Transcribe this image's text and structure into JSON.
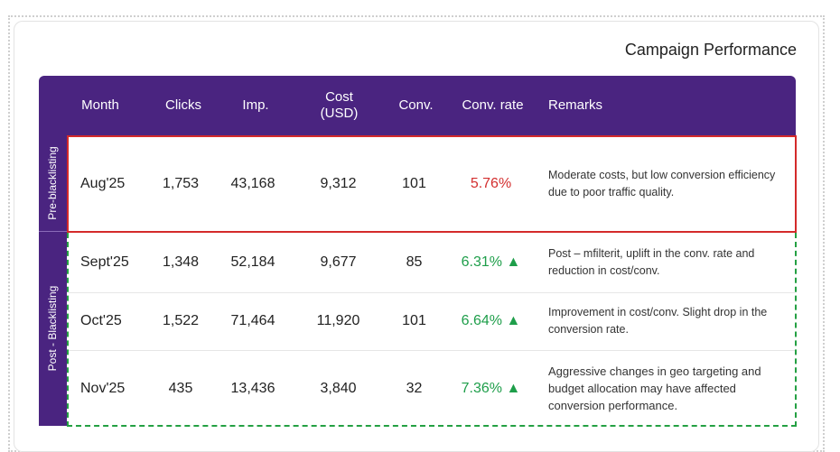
{
  "title": "Campaign Performance",
  "columns": [
    "Month",
    "Clicks",
    "Imp.",
    "Cost\n(USD)",
    "Conv.",
    "Conv. rate",
    "Remarks"
  ],
  "groups": {
    "pre": "Pre-blacklisting",
    "post": "Post - Blacklisting"
  },
  "rows": [
    {
      "month": "Aug'25",
      "clicks": "1,753",
      "imp": "43,168",
      "cost": "9,312",
      "conv": "101",
      "rate": "5.76%",
      "trend": "",
      "remarks": "Moderate costs, but low conversion efficiency due to poor traffic quality."
    },
    {
      "month": "Sept'25",
      "clicks": "1,348",
      "imp": "52,184",
      "cost": "9,677",
      "conv": "85",
      "rate": "6.31%",
      "trend": "▲",
      "remarks": "Post – mfilterit, uplift in the conv. rate and reduction in cost/conv."
    },
    {
      "month": "Oct'25",
      "clicks": "1,522",
      "imp": "71,464",
      "cost": "11,920",
      "conv": "101",
      "rate": "6.64%",
      "trend": "▲",
      "remarks": "Improvement in cost/conv. Slight drop in the conversion rate."
    },
    {
      "month": "Nov'25",
      "clicks": "435",
      "imp": "13,436",
      "cost": "3,840",
      "conv": "32",
      "rate": "7.36%",
      "trend": "▲",
      "remarks": "Aggressive changes in geo targeting and budget allocation may have affected conversion performance."
    }
  ],
  "colors": {
    "header": "#4a2480",
    "pre_border": "#d42a2a",
    "post_border": "#24a043",
    "rate_low": "#d32f2f",
    "rate_up": "#1e9e4a"
  }
}
